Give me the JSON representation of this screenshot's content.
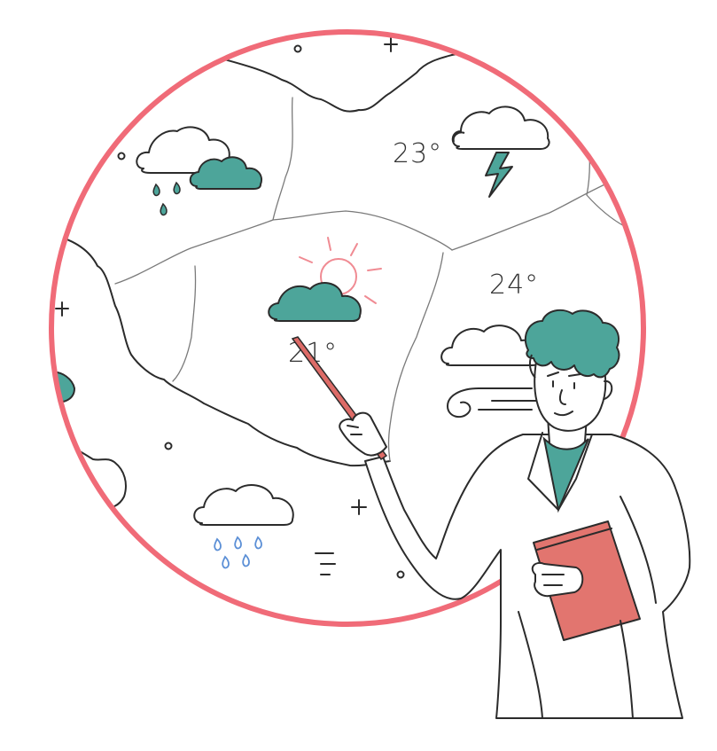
{
  "illustration": {
    "subject": "weather-forecaster-presenting-map",
    "temperatures": {
      "north": "23°",
      "east": "24°",
      "center": "21°"
    },
    "colors": {
      "ring": "#f06b78",
      "teal": "#4da59a",
      "pointer": "#dd6b67",
      "clipboard": "#e2756f",
      "sun": "#f08b93",
      "rain": "#5b8fd6",
      "ink": "#2b2b2b"
    },
    "icons": [
      "rain-cloud-icon",
      "thunderstorm-cloud-icon",
      "partly-sunny-icon",
      "cloudy-icon",
      "wind-icon",
      "rain-cloud-icon",
      "fog-icon"
    ]
  }
}
